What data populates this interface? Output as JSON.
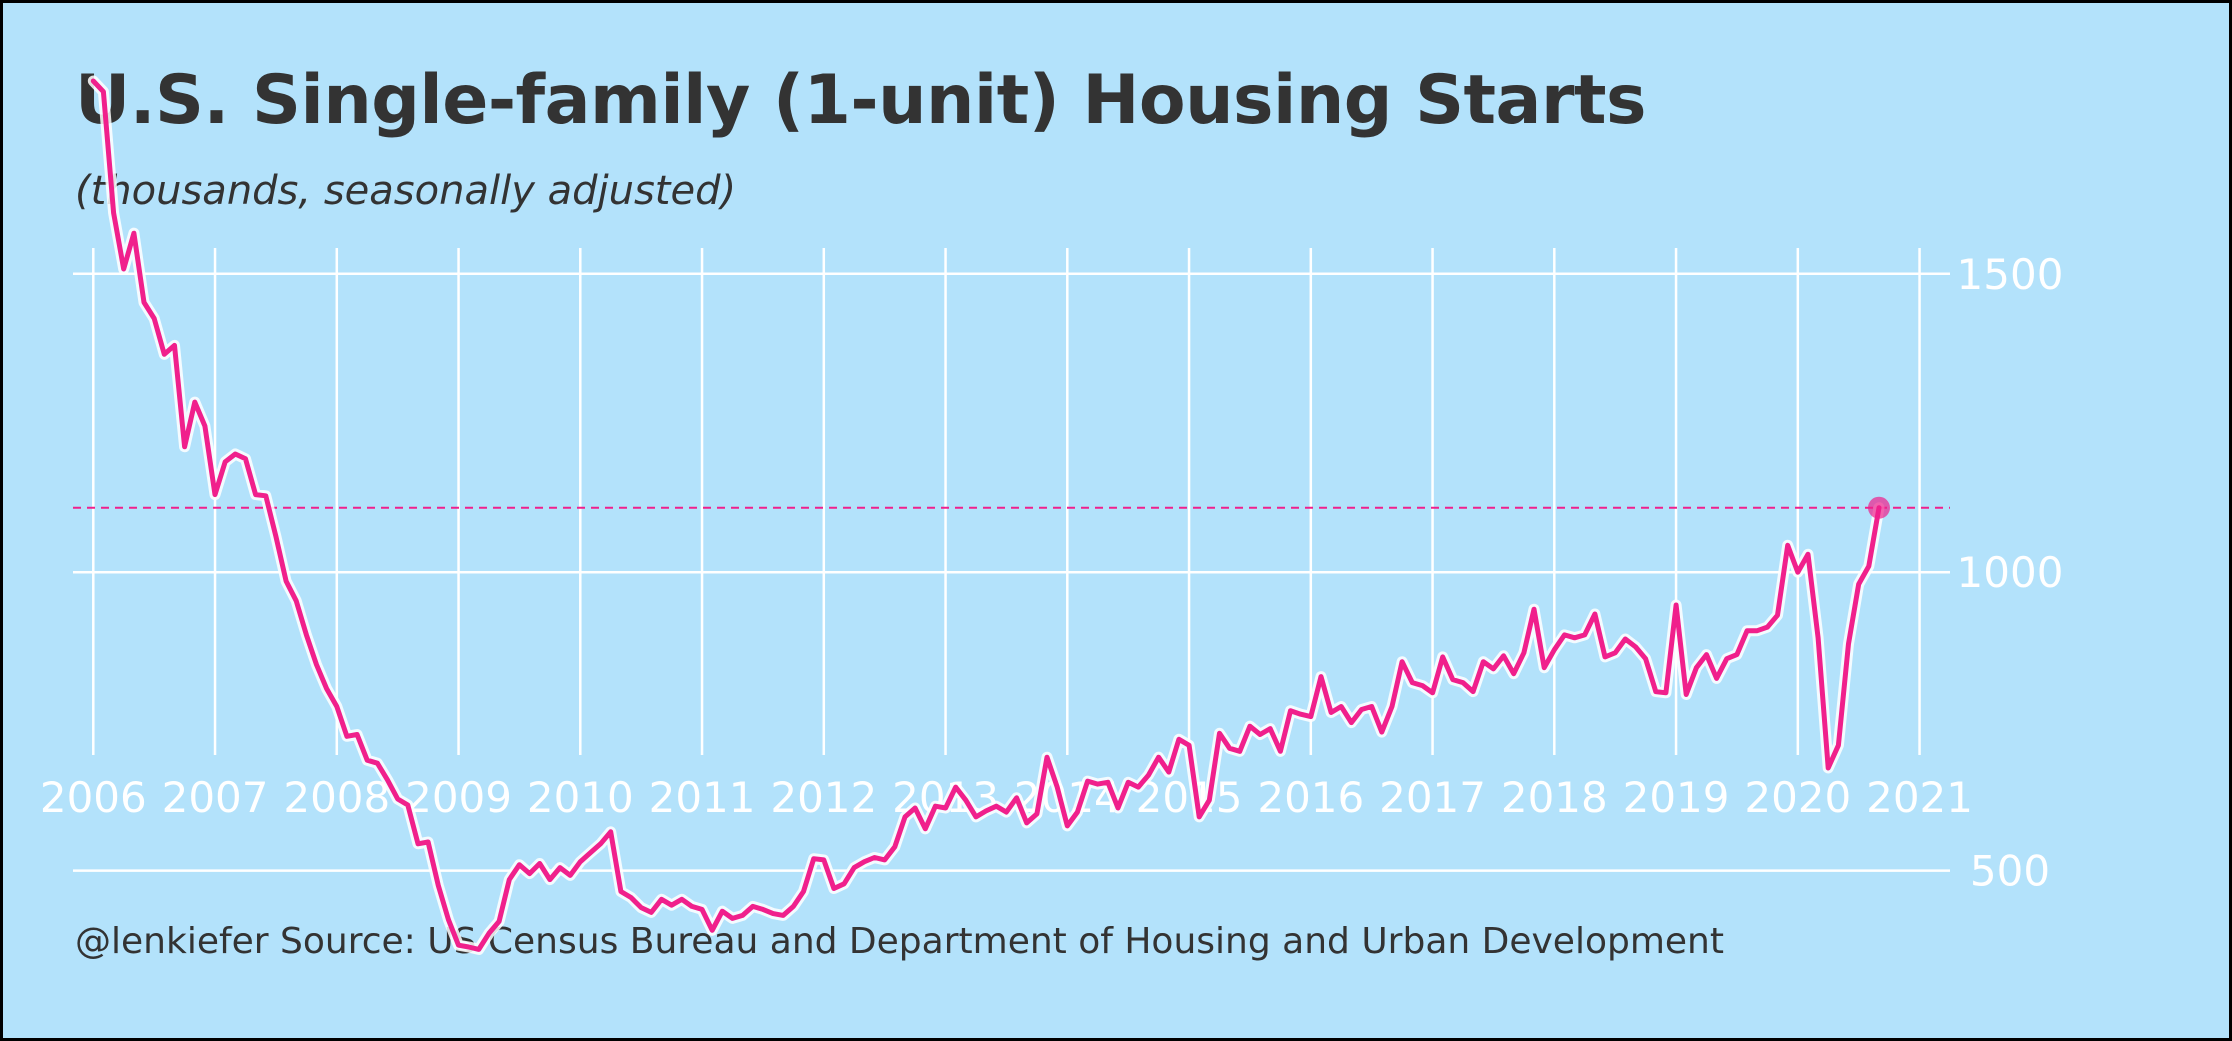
{
  "chart_data": {
    "type": "line",
    "title": "U.S. Single-family (1-unit) Housing Starts",
    "subtitle": "(thousands, seasonally adjusted)",
    "caption": "@lenkiefer Source: US Census Bureau and Department of Housing and Urban Development",
    "xlabel": "",
    "ylabel": "",
    "x_ticks": [
      "2006",
      "2007",
      "2008",
      "2009",
      "2010",
      "2011",
      "2012",
      "2013",
      "2014",
      "2015",
      "2016",
      "2017",
      "2018",
      "2019",
      "2020",
      "2021"
    ],
    "y_ticks": [
      "500",
      "1000",
      "1500"
    ],
    "xlim": [
      "2005-11",
      "2021-04"
    ],
    "ylim": [
      300,
      1900
    ],
    "grid": true,
    "line_color": "#f0208c",
    "reference_line": {
      "y": 1108,
      "style": "dashed",
      "color": "#f0208c"
    },
    "highlight_point": {
      "x": "2020-09",
      "y": 1108
    },
    "series": [
      {
        "start": "2006-01",
        "frequency": "monthly",
        "values": [
          1823,
          1805,
          1602,
          1508,
          1568,
          1452,
          1425,
          1365,
          1380,
          1210,
          1285,
          1245,
          1130,
          1185,
          1198,
          1190,
          1130,
          1128,
          1060,
          985,
          952,
          895,
          845,
          805,
          775,
          725,
          728,
          685,
          680,
          652,
          620,
          610,
          545,
          548,
          475,
          418,
          375,
          372,
          368,
          395,
          415,
          485,
          510,
          495,
          512,
          485,
          505,
          492,
          515,
          530,
          545,
          565,
          465,
          455,
          438,
          430,
          452,
          442,
          452,
          440,
          435,
          400,
          432,
          420,
          425,
          440,
          435,
          428,
          425,
          440,
          465,
          520,
          518,
          470,
          478,
          505,
          515,
          522,
          518,
          540,
          590,
          605,
          570,
          608,
          605,
          640,
          618,
          590,
          600,
          608,
          598,
          622,
          580,
          595,
          690,
          640,
          575,
          598,
          650,
          645,
          648,
          605,
          648,
          640,
          660,
          690,
          665,
          720,
          710,
          590,
          618,
          730,
          705,
          700,
          742,
          728,
          738,
          700,
          768,
          762,
          758,
          825,
          765,
          775,
          748,
          770,
          775,
          732,
          775,
          850,
          815,
          810,
          798,
          858,
          820,
          815,
          800,
          850,
          838,
          860,
          830,
          865,
          938,
          840,
          870,
          895,
          890,
          895,
          930,
          858,
          865,
          888,
          875,
          855,
          800,
          798,
          945,
          795,
          840,
          862,
          822,
          855,
          862,
          902,
          902,
          908,
          928,
          1045,
          1000,
          1030,
          890,
          672,
          710,
          880,
          980,
          1010,
          1108
        ]
      }
    ]
  }
}
